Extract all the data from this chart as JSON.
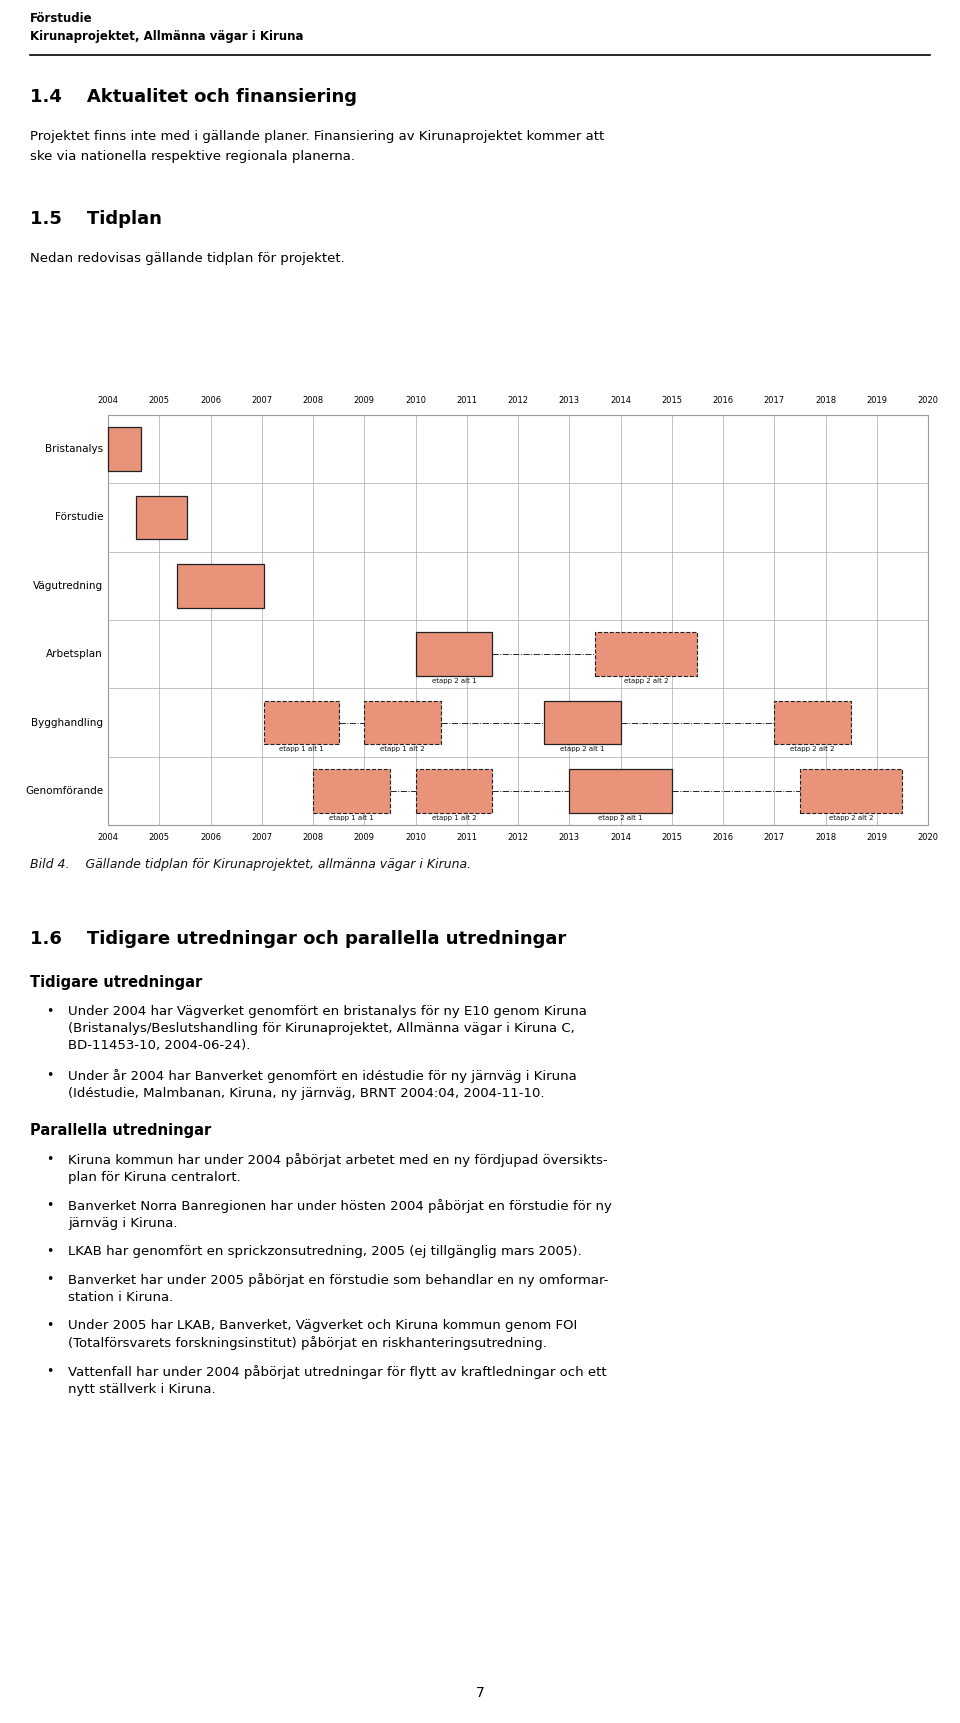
{
  "page_width": 9.6,
  "page_height": 17.23,
  "bg_color": "#ffffff",
  "header_line1": "Förstudie",
  "header_line2": "Kirunaprojektet, Allmänna vägar i Kiruna",
  "section_14_title": "1.4    Aktualitet och finansiering",
  "section_14_body1": "Projektet finns inte med i gällande planer. Finansiering av Kirunaprojektet kommer att",
  "section_14_body2": "ske via nationella respektive regionala planerna.",
  "section_15_title": "1.5    Tidplan",
  "section_15_body": "Nedan redovisas gällande tidplan för projektet.",
  "bild_caption": "Bild 4.    Gällande tidplan för Kirunaprojektet, allmänna vägar i Kiruna.",
  "section_16_title": "1.6    Tidigare utredningar och parallella utredningar",
  "tidigare_heading": "Tidigare utredningar",
  "tidigare_bullets": [
    "Under 2004 har Vägverket genomfört en bristanalys för ny E10 genom Kiruna\n(Bristanalys/Beslutshandling för Kirunaprojektet, Allmänna vägar i Kiruna C,\nBD-11453-10, 2004-06-24).",
    "Under år 2004 har Banverket genomfört en idéstudie för ny järnväg i Kiruna\n(Idéstudie, Malmbanan, Kiruna, ny järnväg, BRNT 2004:04, 2004-11-10."
  ],
  "parallella_heading": "Parallella utredningar",
  "parallella_bullets": [
    "Kiruna kommun har under 2004 påbörjat arbetet med en ny fördjupad översikts-\nplan för Kiruna centralort.",
    "Banverket Norra Banregionen har under hösten 2004 påbörjat en förstudie för ny\njärnväg i Kiruna.",
    "LKAB har genomfört en sprickzonsutredning, 2005 (ej tillgänglig mars 2005).",
    "Banverket har under 2005 påbörjat en förstudie som behandlar en ny omformar-\nstation i Kiruna.",
    "Under 2005 har LKAB, Banverket, Vägverket och Kiruna kommun genom FOI\n(Totalförsvarets forskningsinstitut) påbörjat en riskhanteringsutredning.",
    "Vattenfall har under 2004 påbörjat utredningar för flytt av kraftledningar och ett\nnytt ställverk i Kiruna."
  ],
  "page_number": "7",
  "gantt_years": [
    2004,
    2005,
    2006,
    2007,
    2008,
    2009,
    2010,
    2011,
    2012,
    2013,
    2014,
    2015,
    2016,
    2017,
    2018,
    2019,
    2020
  ],
  "gantt_rows": [
    "Bristanalys",
    "Förstudie",
    "Vägutredning",
    "Arbetsplan",
    "Bygghandling",
    "Genomförande"
  ],
  "salmon_color": "#E8937A",
  "gantt_border": "#222222",
  "gantt_line_color": "#999999"
}
